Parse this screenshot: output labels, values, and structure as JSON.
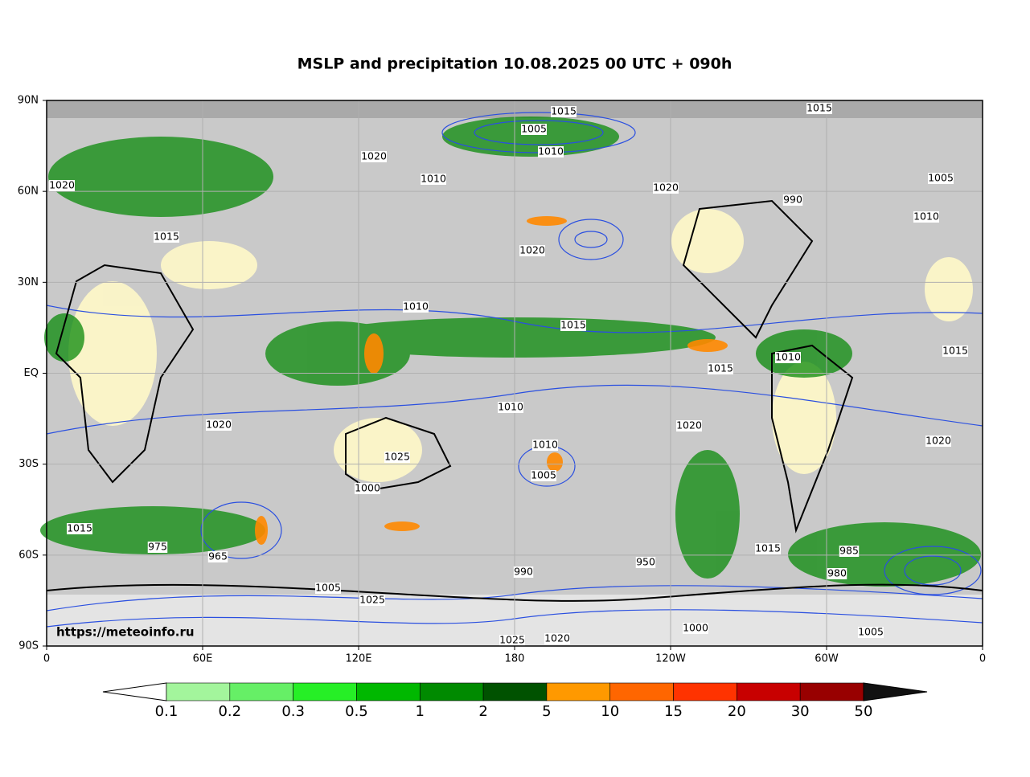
{
  "map": {
    "title": "MSLP and precipitation 10.08.2025 00 UTC + 090h",
    "watermark": "https://meteoinfo.ru",
    "lat_ticks": [
      {
        "value": 90,
        "label": "90N"
      },
      {
        "value": 60,
        "label": "60N"
      },
      {
        "value": 30,
        "label": "30N"
      },
      {
        "value": 0,
        "label": "EQ"
      },
      {
        "value": -30,
        "label": "30S"
      },
      {
        "value": -60,
        "label": "60S"
      },
      {
        "value": -90,
        "label": "90S"
      }
    ],
    "lon_ticks": [
      {
        "value": 0,
        "label": "0"
      },
      {
        "value": 60,
        "label": "60E"
      },
      {
        "value": 120,
        "label": "120E"
      },
      {
        "value": 180,
        "label": "180"
      },
      {
        "value": 240,
        "label": "120W"
      },
      {
        "value": 300,
        "label": "60W"
      },
      {
        "value": 360,
        "label": "0"
      }
    ],
    "latlim": [
      -90,
      90
    ],
    "lonlim": [
      0,
      360
    ],
    "isobar_labels": [
      1015,
      1015,
      1005,
      1010,
      1020,
      1010,
      1020,
      990,
      1005,
      1020,
      1020,
      1010,
      1015,
      1010,
      1015,
      1015,
      1010,
      1020,
      1020,
      1025,
      1020,
      1010,
      1005,
      1015,
      975,
      965,
      950,
      1015,
      985,
      980,
      990,
      1025,
      1000,
      1005,
      1025,
      1020,
      1005,
      1015,
      1010,
      1000
    ]
  },
  "colorbar": {
    "levels": [
      0.1,
      0.2,
      0.3,
      0.5,
      1,
      2,
      5,
      10,
      15,
      20,
      30,
      50
    ],
    "colors": [
      "#a3f59c",
      "#66ef66",
      "#26ef26",
      "#00b800",
      "#008a00",
      "#005200",
      "#ff9900",
      "#ff6600",
      "#ff3300",
      "#c80000",
      "#980000"
    ],
    "under_color": "#ffffff",
    "over_color": "#111111"
  }
}
